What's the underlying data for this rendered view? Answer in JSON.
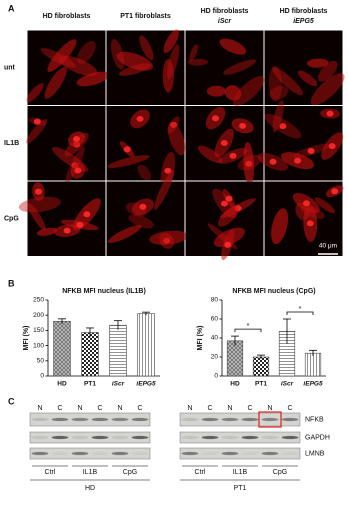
{
  "panel_labels": [
    "A",
    "B",
    "C"
  ],
  "panel_a": {
    "columns": [
      {
        "line1": "HD fibroblasts"
      },
      {
        "line1": "PT1 fibroblasts"
      },
      {
        "line1": "HD fibroblasts",
        "line2": "iScr"
      },
      {
        "line1": "HD fibroblasts",
        "line2": "iEPG5"
      }
    ],
    "rows": [
      "unt",
      "IL1B",
      "CpG"
    ],
    "scale_bar": "40 μm"
  },
  "chart_data": [
    {
      "type": "bar",
      "title": "NFKB MFI nucleus (IL1B)",
      "y_label": "MFI (%)",
      "categories": [
        "HD",
        "PT1",
        "iScr",
        "iEPG5"
      ],
      "values": [
        180,
        143,
        167,
        205
      ],
      "errors": [
        8,
        15,
        15,
        5
      ],
      "patterns": [
        "crosshatch",
        "checker",
        "hlines",
        "vlines"
      ],
      "ylim": [
        0,
        250
      ],
      "yticks": [
        0,
        50,
        100,
        150,
        200,
        250
      ]
    },
    {
      "type": "bar",
      "title": "NFKB MFI nucleus (CpG)",
      "y_label": "MFI (%)",
      "categories": [
        "HD",
        "PT1",
        "iScr",
        "iEPG5"
      ],
      "values": [
        37,
        20,
        47,
        24
      ],
      "errors": [
        5,
        2,
        13,
        3
      ],
      "patterns": [
        "crosshatch",
        "checker",
        "hlines",
        "vlines"
      ],
      "ylim": [
        0,
        80
      ],
      "yticks": [
        0,
        20,
        40,
        60,
        80
      ],
      "significance": [
        "*",
        "*"
      ]
    }
  ],
  "panel_c": {
    "lanes": [
      "N",
      "C",
      "N",
      "C",
      "N",
      "C"
    ],
    "treatments": [
      "Ctrl",
      "IL1B",
      "CpG"
    ],
    "cells": [
      "HD",
      "PT1"
    ],
    "proteins": [
      "NFKB",
      "GAPDH",
      "LMNB"
    ]
  }
}
